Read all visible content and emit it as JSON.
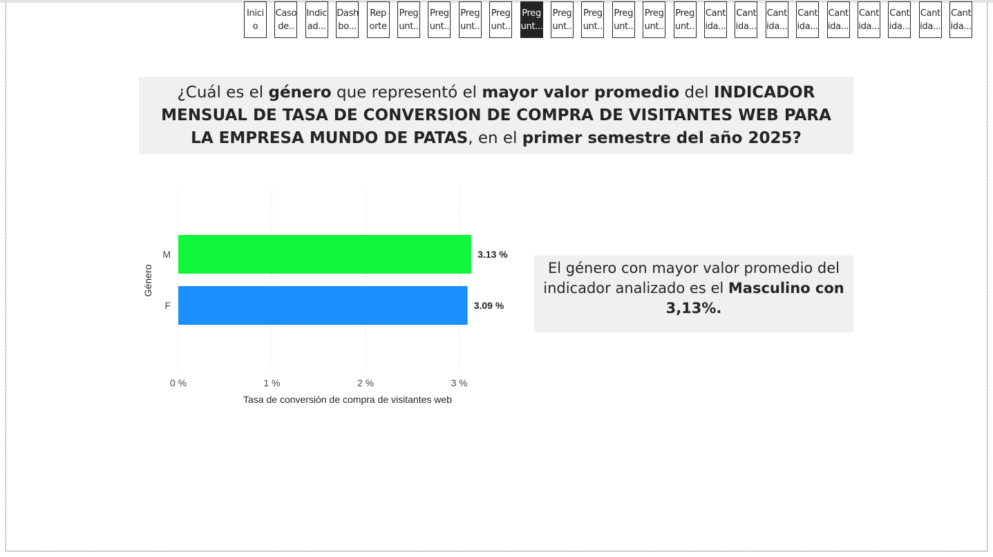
{
  "nav": {
    "buttons": [
      {
        "line1": "Inici",
        "line2": "o",
        "active": false
      },
      {
        "line1": "Caso",
        "line2": "de..",
        "active": false
      },
      {
        "line1": "Indic",
        "line2": "ad...",
        "active": false
      },
      {
        "line1": "Dash",
        "line2": "bo...",
        "active": false
      },
      {
        "line1": "Rep",
        "line2": "orte",
        "active": false
      },
      {
        "line1": "Preg",
        "line2": "unt..",
        "active": false
      },
      {
        "line1": "Preg",
        "line2": "unt..",
        "active": false
      },
      {
        "line1": "Preg",
        "line2": "unt..",
        "active": false
      },
      {
        "line1": "Preg",
        "line2": "unt..",
        "active": false
      },
      {
        "line1": "Preg",
        "line2": "unt...",
        "active": true
      },
      {
        "line1": "Preg",
        "line2": "unt..",
        "active": false
      },
      {
        "line1": "Preg",
        "line2": "unt..",
        "active": false
      },
      {
        "line1": "Preg",
        "line2": "unt..",
        "active": false
      },
      {
        "line1": "Preg",
        "line2": "unt..",
        "active": false
      },
      {
        "line1": "Preg",
        "line2": "unt..",
        "active": false
      },
      {
        "line1": "Cant",
        "line2": "ida...",
        "active": false
      },
      {
        "line1": "Cant",
        "line2": "ida...",
        "active": false
      },
      {
        "line1": "Cant",
        "line2": "ida...",
        "active": false
      },
      {
        "line1": "Cant",
        "line2": "ida...",
        "active": false
      },
      {
        "line1": "Cant",
        "line2": "ida...",
        "active": false
      },
      {
        "line1": "Cant",
        "line2": "ida...",
        "active": false
      },
      {
        "line1": "Cant",
        "line2": "ida...",
        "active": false
      },
      {
        "line1": "Cant",
        "line2": "ida...",
        "active": false
      },
      {
        "line1": "Cant",
        "line2": "ida...",
        "active": false
      }
    ]
  },
  "question": {
    "p1": "¿Cuál es el ",
    "b1": "género",
    "p2": " que representó el ",
    "b2": "mayor valor promedio",
    "p3": " del ",
    "b3": "INDICADOR MENSUAL DE TASA DE CONVERSION DE COMPRA DE VISITANTES WEB PARA LA EMPRESA MUNDO DE PATAS",
    "p4": ", en el ",
    "b4": "primer semestre del año 2025?"
  },
  "chart_data": {
    "type": "bar",
    "orientation": "horizontal",
    "categories": [
      "M",
      "F"
    ],
    "values": [
      3.13,
      3.09
    ],
    "data_labels": [
      "3.13 %",
      "3.09 %"
    ],
    "colors": [
      "#11f73c",
      "#1a8fff"
    ],
    "xlabel": "Tasa de conversión de compra de visitantes web",
    "ylabel": "Género",
    "xlim": [
      0,
      3.5
    ],
    "xticks": [
      0,
      1,
      2,
      3
    ],
    "xtick_labels": [
      "0 %",
      "1 %",
      "2 %",
      "3 %"
    ],
    "grid": "vertical dotted"
  },
  "answer": {
    "p1": "El género con mayor valor promedio del indicador analizado es el ",
    "b1": "Masculino con 3,13%."
  }
}
